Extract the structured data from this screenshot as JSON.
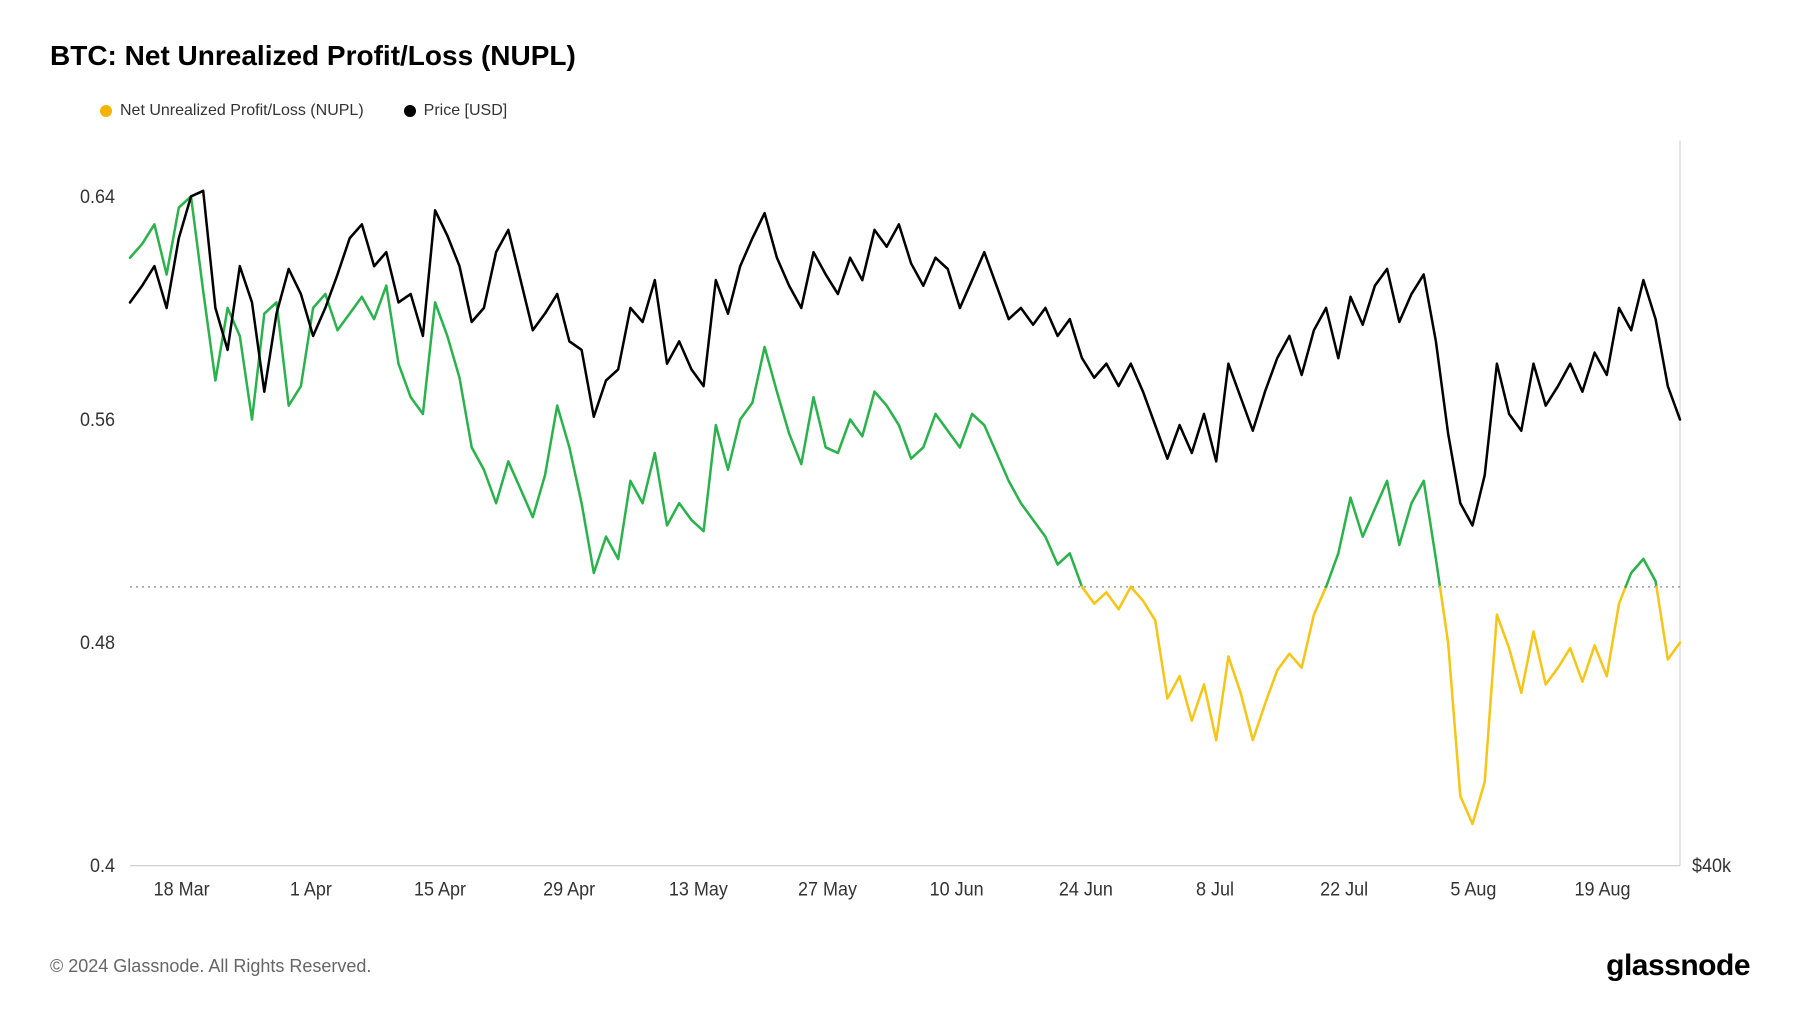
{
  "title": "BTC: Net Unrealized Profit/Loss (NUPL)",
  "copyright": "© 2024 Glassnode. All Rights Reserved.",
  "brand": "glassnode",
  "legend": [
    {
      "label": "Net Unrealized Profit/Loss (NUPL)",
      "color": "#f5b400"
    },
    {
      "label": "Price [USD]",
      "color": "#000000"
    }
  ],
  "chart": {
    "type": "line",
    "background_color": "#ffffff",
    "plot_border_color": "#cccccc",
    "grid_color": "#e0e0e0",
    "threshold_line_color": "#888888",
    "threshold_value": 0.5,
    "axis_font_size": 18,
    "line_width": 2.5,
    "left_axis": {
      "min": 0.4,
      "max": 0.66,
      "ticks": [
        0.4,
        0.48,
        0.56,
        0.64
      ]
    },
    "right_axis": {
      "label": "$40k",
      "label_position": 0.4
    },
    "x_axis": {
      "labels": [
        "18 Mar",
        "1 Apr",
        "15 Apr",
        "29 Apr",
        "13 May",
        "27 May",
        "10 Jun",
        "24 Jun",
        "8 Jul",
        "22 Jul",
        "5 Aug",
        "19 Aug"
      ]
    },
    "series": {
      "nupl": {
        "color_above": "#2bb24c",
        "color_below": "#f5c518",
        "data": [
          0.618,
          0.623,
          0.63,
          0.612,
          0.636,
          0.64,
          0.606,
          0.574,
          0.6,
          0.59,
          0.56,
          0.598,
          0.602,
          0.565,
          0.572,
          0.6,
          0.605,
          0.592,
          0.598,
          0.604,
          0.596,
          0.608,
          0.58,
          0.568,
          0.562,
          0.602,
          0.59,
          0.575,
          0.55,
          0.542,
          0.53,
          0.545,
          0.535,
          0.525,
          0.54,
          0.565,
          0.55,
          0.53,
          0.505,
          0.518,
          0.51,
          0.538,
          0.53,
          0.548,
          0.522,
          0.53,
          0.524,
          0.52,
          0.558,
          0.542,
          0.56,
          0.566,
          0.586,
          0.57,
          0.555,
          0.544,
          0.568,
          0.55,
          0.548,
          0.56,
          0.554,
          0.57,
          0.565,
          0.558,
          0.546,
          0.55,
          0.562,
          0.556,
          0.55,
          0.562,
          0.558,
          0.548,
          0.538,
          0.53,
          0.524,
          0.518,
          0.508,
          0.512,
          0.5,
          0.494,
          0.498,
          0.492,
          0.5,
          0.495,
          0.488,
          0.46,
          0.468,
          0.452,
          0.465,
          0.445,
          0.475,
          0.462,
          0.445,
          0.458,
          0.47,
          0.476,
          0.471,
          0.49,
          0.5,
          0.512,
          0.532,
          0.518,
          0.528,
          0.538,
          0.515,
          0.53,
          0.538,
          0.51,
          0.48,
          0.425,
          0.415,
          0.43,
          0.49,
          0.478,
          0.462,
          0.484,
          0.465,
          0.471,
          0.478,
          0.466,
          0.479,
          0.468,
          0.494,
          0.505,
          0.51,
          0.502,
          0.474,
          0.48
        ]
      },
      "price": {
        "color": "#000000",
        "data": [
          0.602,
          0.608,
          0.615,
          0.6,
          0.625,
          0.64,
          0.642,
          0.6,
          0.585,
          0.615,
          0.602,
          0.57,
          0.598,
          0.614,
          0.605,
          0.59,
          0.6,
          0.612,
          0.625,
          0.63,
          0.615,
          0.62,
          0.602,
          0.605,
          0.59,
          0.635,
          0.626,
          0.615,
          0.595,
          0.6,
          0.62,
          0.628,
          0.61,
          0.592,
          0.598,
          0.605,
          0.588,
          0.585,
          0.561,
          0.574,
          0.578,
          0.6,
          0.595,
          0.61,
          0.58,
          0.588,
          0.578,
          0.572,
          0.61,
          0.598,
          0.615,
          0.625,
          0.634,
          0.618,
          0.608,
          0.6,
          0.62,
          0.612,
          0.605,
          0.618,
          0.61,
          0.628,
          0.622,
          0.63,
          0.616,
          0.608,
          0.618,
          0.614,
          0.6,
          0.61,
          0.62,
          0.608,
          0.596,
          0.6,
          0.594,
          0.6,
          0.59,
          0.596,
          0.582,
          0.575,
          0.58,
          0.572,
          0.58,
          0.57,
          0.558,
          0.546,
          0.558,
          0.548,
          0.562,
          0.545,
          0.58,
          0.568,
          0.556,
          0.57,
          0.582,
          0.59,
          0.576,
          0.592,
          0.6,
          0.582,
          0.604,
          0.594,
          0.608,
          0.614,
          0.595,
          0.605,
          0.612,
          0.588,
          0.555,
          0.53,
          0.522,
          0.54,
          0.58,
          0.562,
          0.556,
          0.58,
          0.565,
          0.572,
          0.58,
          0.57,
          0.584,
          0.576,
          0.6,
          0.592,
          0.61,
          0.596,
          0.572,
          0.56
        ]
      }
    }
  }
}
